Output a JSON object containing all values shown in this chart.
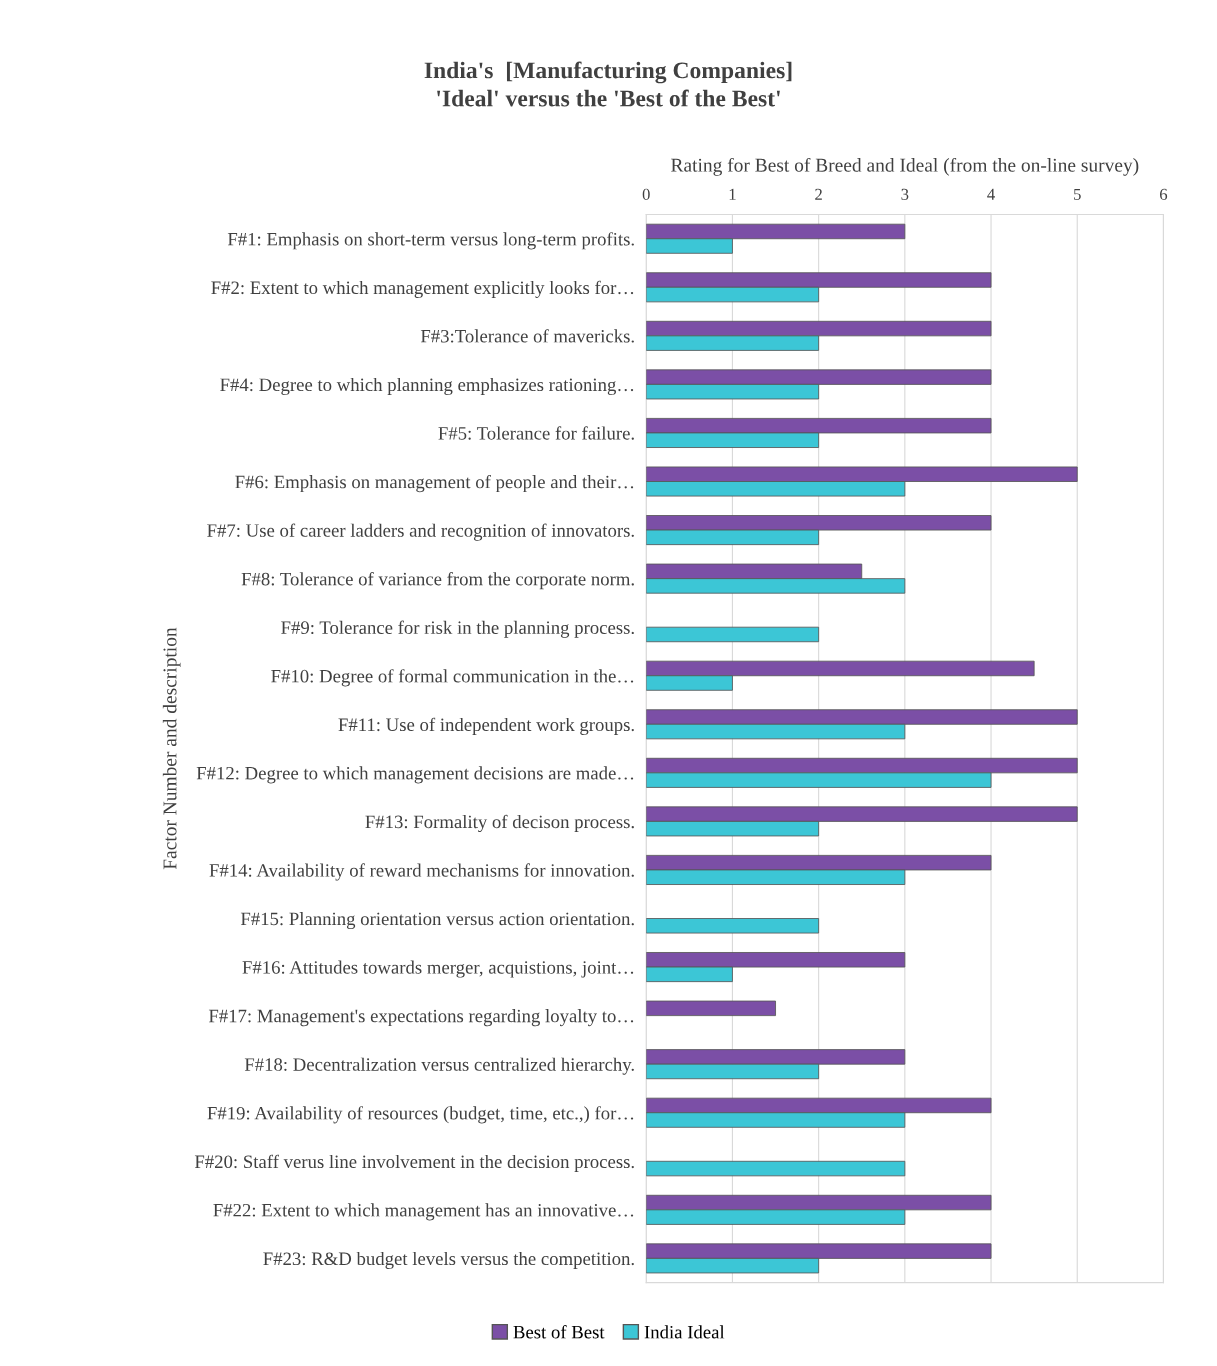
{
  "chart_data": {
    "type": "bar",
    "orientation": "horizontal",
    "title": "India's  [Manufacturing Companies]\n'Ideal' versus the 'Best of the Best'",
    "xlabel": "Rating for Best of Breed and Ideal (from the on-line survey)",
    "ylabel": "Factor Number and description",
    "categories": [
      "F#1: Emphasis on short-term versus long-term profits.",
      "F#2: Extent to which management explicitly looks for…",
      "F#3:Tolerance of mavericks.",
      "F#4: Degree to which planning emphasizes rationing…",
      "F#5: Tolerance for failure.",
      "F#6: Emphasis on management of people and their…",
      "F#7: Use of career ladders and recognition of innovators.",
      "F#8: Tolerance of variance from the corporate norm.",
      "F#9: Tolerance for risk in the planning process.",
      "F#10: Degree of formal communication in the…",
      "F#11: Use of independent work groups.",
      "F#12: Degree to which management decisions are made…",
      "F#13: Formality of decison process.",
      "F#14: Availability of reward mechanisms for innovation.",
      "F#15: Planning orientation versus action orientation.",
      "F#16: Attitudes towards merger, acquistions, joint…",
      "F#17: Management's expectations regarding loyalty to…",
      "F#18: Decentralization versus centralized hierarchy.",
      "F#19: Availability of resources (budget, time, etc.,) for…",
      "F#20: Staff verus line involvement in the decision process.",
      "F#22: Extent to which management has an innovative…",
      "F#23: R&D budget levels versus the competition."
    ],
    "series": [
      {
        "name": "Best of Best",
        "color": "#7b4fa6",
        "values": [
          3,
          4,
          4,
          4,
          4,
          5,
          4,
          2.5,
          null,
          4.5,
          5,
          5,
          5,
          4,
          null,
          3,
          1.5,
          3,
          4,
          null,
          4,
          4
        ]
      },
      {
        "name": "India Ideal",
        "color": "#3cc6d6",
        "values": [
          1,
          2,
          2,
          2,
          2,
          3,
          2,
          3,
          2,
          1,
          3,
          4,
          2,
          3,
          2,
          1,
          null,
          2,
          3,
          3,
          3,
          2
        ]
      }
    ],
    "xlim": [
      0,
      6
    ],
    "xticks": [
      0,
      1,
      2,
      3,
      4,
      5,
      6
    ],
    "grid": "x",
    "legend": "bottom"
  }
}
